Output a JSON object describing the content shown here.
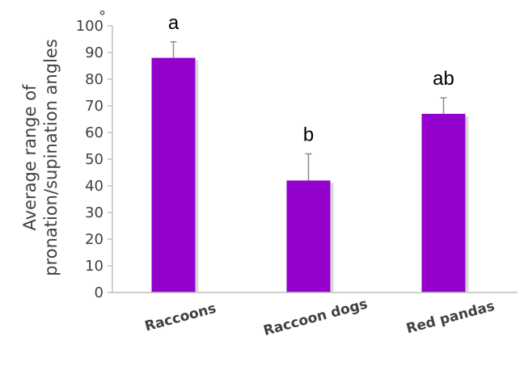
{
  "chart_data": {
    "type": "bar",
    "categories": [
      "Raccoons",
      "Raccoon dogs",
      "Red pandas"
    ],
    "values": [
      88,
      42,
      67
    ],
    "error_bars": [
      6,
      10,
      6
    ],
    "significance_labels": [
      "a",
      "b",
      "ab"
    ],
    "ylabel": [
      "Average range of",
      "pronation/supination  angles"
    ],
    "ylabel_unit": "°",
    "ylim": [
      0,
      100
    ],
    "yticks": [
      0,
      10,
      20,
      30,
      40,
      50,
      60,
      70,
      80,
      90,
      100
    ],
    "grid": false,
    "legend": "none",
    "colors": {
      "bar": "#9400CC",
      "bar_shadow": "#c8c8c8",
      "axis": "#bfbfbf",
      "error": "#8c8c8c"
    }
  }
}
